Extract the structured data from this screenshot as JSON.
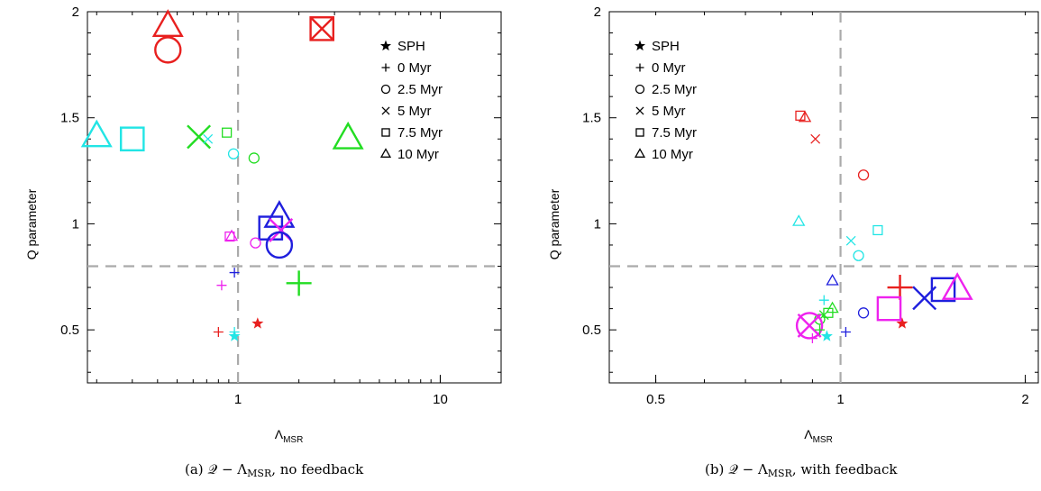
{
  "captions": [
    {
      "prefix": "(a) ",
      "math": "𝒬 − Λ",
      "sub": "MSR",
      "suffix": ", no feedback"
    },
    {
      "prefix": "(b) ",
      "math": "𝒬 − Λ",
      "sub": "MSR",
      "suffix": ", with feedback"
    }
  ],
  "legend": [
    {
      "symbol": "star",
      "label": "SPH"
    },
    {
      "symbol": "plus",
      "label": "0 Myr"
    },
    {
      "symbol": "circle",
      "label": "2.5 Myr"
    },
    {
      "symbol": "cross",
      "label": "5 Myr"
    },
    {
      "symbol": "square",
      "label": "7.5 Myr"
    },
    {
      "symbol": "triangle",
      "label": "10 Myr"
    }
  ],
  "colors": {
    "red": "#e8201f",
    "green": "#22dd22",
    "blue": "#1f1fdd",
    "cyan": "#22e5e5",
    "magenta": "#ee22ee",
    "ref": "#aaaaaa"
  },
  "chart_data": [
    {
      "type": "scatter",
      "title": "",
      "xlabel": "Λ",
      "xlabel_sub": "MSR",
      "ylabel": "Q parameter",
      "xscale": "log",
      "xlim": [
        0.18,
        20
      ],
      "ylim": [
        0.25,
        2.0
      ],
      "xticks": [
        1,
        10
      ],
      "yticks": [
        0.5,
        1,
        1.5,
        2
      ],
      "ref_lines": {
        "x": 1,
        "y": 0.8
      },
      "legend_position": "top-right",
      "points": [
        {
          "x": 0.45,
          "y": 1.93,
          "marker": "triangle",
          "color": "red",
          "size": "large"
        },
        {
          "x": 0.45,
          "y": 1.82,
          "marker": "circle",
          "color": "red",
          "size": "large"
        },
        {
          "x": 2.6,
          "y": 1.92,
          "marker": "square",
          "color": "red",
          "size": "large"
        },
        {
          "x": 2.6,
          "y": 1.92,
          "marker": "cross",
          "color": "red",
          "size": "large"
        },
        {
          "x": 0.2,
          "y": 1.41,
          "marker": "triangle",
          "color": "cyan",
          "size": "large"
        },
        {
          "x": 0.3,
          "y": 1.4,
          "marker": "square",
          "color": "cyan",
          "size": "large"
        },
        {
          "x": 0.64,
          "y": 1.41,
          "marker": "cross",
          "color": "green",
          "size": "large"
        },
        {
          "x": 0.71,
          "y": 1.4,
          "marker": "cross",
          "color": "cyan",
          "size": "small"
        },
        {
          "x": 0.88,
          "y": 1.43,
          "marker": "square",
          "color": "green",
          "size": "small"
        },
        {
          "x": 0.95,
          "y": 1.33,
          "marker": "circle",
          "color": "cyan",
          "size": "small"
        },
        {
          "x": 1.2,
          "y": 1.31,
          "marker": "circle",
          "color": "green",
          "size": "small"
        },
        {
          "x": 3.5,
          "y": 1.4,
          "marker": "triangle",
          "color": "green",
          "size": "large"
        },
        {
          "x": 1.45,
          "y": 0.98,
          "marker": "square",
          "color": "blue",
          "size": "large"
        },
        {
          "x": 1.6,
          "y": 1.03,
          "marker": "triangle",
          "color": "blue",
          "size": "large"
        },
        {
          "x": 1.63,
          "y": 0.97,
          "marker": "cross",
          "color": "magenta",
          "size": "large"
        },
        {
          "x": 1.6,
          "y": 0.9,
          "marker": "circle",
          "color": "blue",
          "size": "large"
        },
        {
          "x": 0.93,
          "y": 0.94,
          "marker": "triangle",
          "color": "magenta",
          "size": "small"
        },
        {
          "x": 0.91,
          "y": 0.94,
          "marker": "square",
          "color": "magenta",
          "size": "small"
        },
        {
          "x": 1.22,
          "y": 0.91,
          "marker": "circle",
          "color": "magenta",
          "size": "small"
        },
        {
          "x": 0.96,
          "y": 0.77,
          "marker": "plus",
          "color": "blue",
          "size": "small"
        },
        {
          "x": 0.83,
          "y": 0.71,
          "marker": "plus",
          "color": "magenta",
          "size": "small"
        },
        {
          "x": 2.0,
          "y": 0.72,
          "marker": "plus",
          "color": "green",
          "size": "large"
        },
        {
          "x": 0.8,
          "y": 0.49,
          "marker": "plus",
          "color": "red",
          "size": "small"
        },
        {
          "x": 0.96,
          "y": 0.49,
          "marker": "plus",
          "color": "cyan",
          "size": "small"
        },
        {
          "x": 0.96,
          "y": 0.47,
          "marker": "star",
          "color": "cyan",
          "size": "small"
        },
        {
          "x": 1.25,
          "y": 0.53,
          "marker": "star",
          "color": "red",
          "size": "small"
        }
      ]
    },
    {
      "type": "scatter",
      "title": "",
      "xlabel": "Λ",
      "xlabel_sub": "MSR",
      "ylabel": "Q parameter",
      "xscale": "log",
      "xlim": [
        0.42,
        2.1
      ],
      "ylim": [
        0.25,
        2.0
      ],
      "xticks": [
        0.5,
        1,
        2
      ],
      "yticks": [
        0.5,
        1,
        1.5,
        2
      ],
      "ref_lines": {
        "x": 1,
        "y": 0.8
      },
      "legend_position": "top-left",
      "points": [
        {
          "x": 0.86,
          "y": 1.51,
          "marker": "square",
          "color": "red",
          "size": "small"
        },
        {
          "x": 0.875,
          "y": 1.5,
          "marker": "triangle",
          "color": "red",
          "size": "small"
        },
        {
          "x": 0.91,
          "y": 1.4,
          "marker": "cross",
          "color": "red",
          "size": "small"
        },
        {
          "x": 1.09,
          "y": 1.23,
          "marker": "circle",
          "color": "red",
          "size": "small"
        },
        {
          "x": 0.855,
          "y": 1.01,
          "marker": "triangle",
          "color": "cyan",
          "size": "small"
        },
        {
          "x": 1.15,
          "y": 0.97,
          "marker": "square",
          "color": "cyan",
          "size": "small"
        },
        {
          "x": 1.04,
          "y": 0.92,
          "marker": "cross",
          "color": "cyan",
          "size": "small"
        },
        {
          "x": 1.07,
          "y": 0.85,
          "marker": "circle",
          "color": "cyan",
          "size": "small"
        },
        {
          "x": 0.97,
          "y": 0.73,
          "marker": "triangle",
          "color": "blue",
          "size": "small"
        },
        {
          "x": 0.94,
          "y": 0.64,
          "marker": "plus",
          "color": "cyan",
          "size": "small"
        },
        {
          "x": 0.955,
          "y": 0.58,
          "marker": "square",
          "color": "green",
          "size": "small"
        },
        {
          "x": 0.97,
          "y": 0.6,
          "marker": "triangle",
          "color": "green",
          "size": "small"
        },
        {
          "x": 0.94,
          "y": 0.57,
          "marker": "cross",
          "color": "green",
          "size": "small"
        },
        {
          "x": 0.925,
          "y": 0.55,
          "marker": "circle",
          "color": "green",
          "size": "small"
        },
        {
          "x": 0.89,
          "y": 0.52,
          "marker": "circle",
          "color": "magenta",
          "size": "large"
        },
        {
          "x": 0.89,
          "y": 0.52,
          "marker": "cross",
          "color": "magenta",
          "size": "large"
        },
        {
          "x": 0.9,
          "y": 0.46,
          "marker": "plus",
          "color": "magenta",
          "size": "small"
        },
        {
          "x": 0.925,
          "y": 0.5,
          "marker": "plus",
          "color": "green",
          "size": "small"
        },
        {
          "x": 0.95,
          "y": 0.47,
          "marker": "star",
          "color": "cyan",
          "size": "small"
        },
        {
          "x": 1.02,
          "y": 0.49,
          "marker": "plus",
          "color": "blue",
          "size": "small"
        },
        {
          "x": 1.09,
          "y": 0.58,
          "marker": "circle",
          "color": "blue",
          "size": "small"
        },
        {
          "x": 1.25,
          "y": 0.7,
          "marker": "plus",
          "color": "red",
          "size": "large"
        },
        {
          "x": 1.26,
          "y": 0.53,
          "marker": "star",
          "color": "red",
          "size": "small"
        },
        {
          "x": 1.2,
          "y": 0.6,
          "marker": "square",
          "color": "magenta",
          "size": "large"
        },
        {
          "x": 1.37,
          "y": 0.65,
          "marker": "cross",
          "color": "blue",
          "size": "large"
        },
        {
          "x": 1.47,
          "y": 0.69,
          "marker": "square",
          "color": "blue",
          "size": "large"
        },
        {
          "x": 1.55,
          "y": 0.69,
          "marker": "triangle",
          "color": "magenta",
          "size": "large"
        }
      ]
    }
  ]
}
